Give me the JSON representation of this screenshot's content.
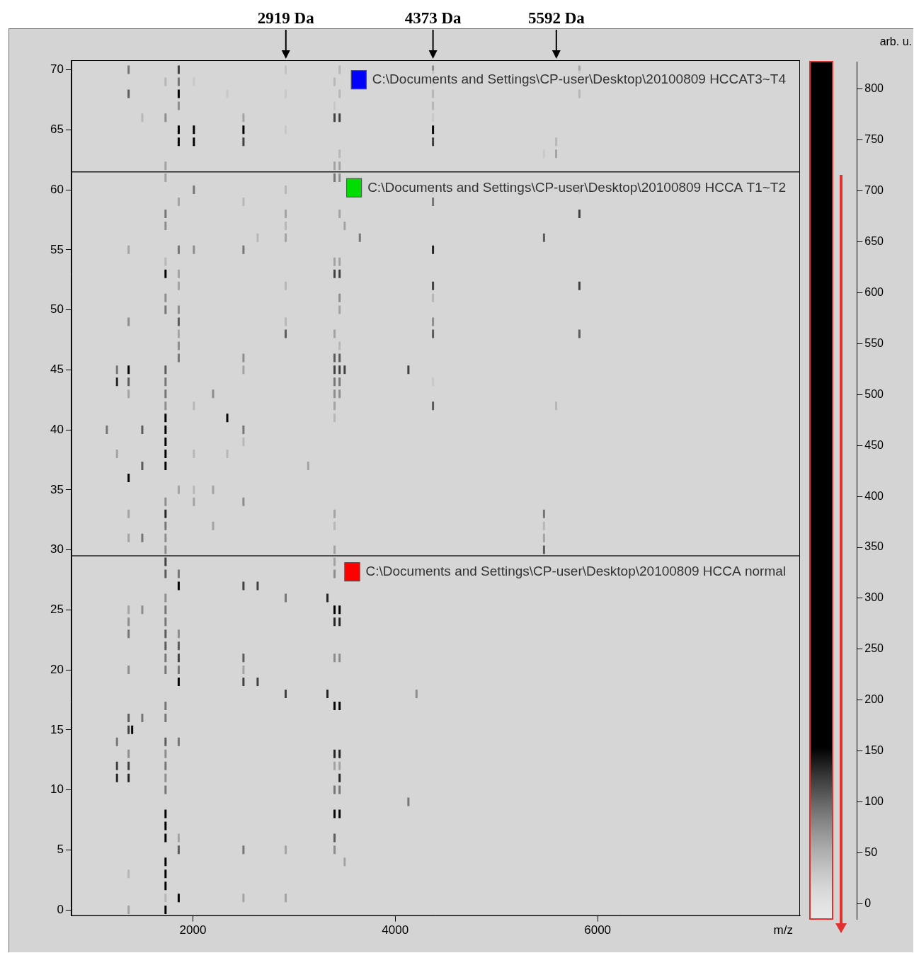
{
  "chart_data": {
    "type": "gel",
    "x_label": "m/z",
    "xlim": [
      800,
      8000
    ],
    "xticks": [
      2000,
      4000,
      6000
    ],
    "ylim": [
      -0.5,
      70.8
    ],
    "yticks": [
      0,
      5,
      10,
      15,
      20,
      25,
      30,
      35,
      40,
      45,
      50,
      55,
      60,
      65,
      70
    ],
    "grid": false,
    "annotations": [
      {
        "text": "2919 Da",
        "x": 2919
      },
      {
        "text": "4373 Da",
        "x": 4373
      },
      {
        "text": "5592 Da",
        "x": 5592
      }
    ],
    "groups": [
      {
        "label": "C:\\Documents and Settings\\CP-user\\Desktop\\20100809 HCCAT3~T4",
        "color": "#0000ff",
        "rows": [
          62,
          70
        ]
      },
      {
        "label": "C:\\Documents and Settings\\CP-user\\Desktop\\20100809 HCCA T1~T2",
        "color": "#00dd00",
        "rows": [
          30,
          61
        ]
      },
      {
        "label": "C:\\Documents and Settings\\CP-user\\Desktop\\20100809 HCCA normal",
        "color": "#ff0000",
        "rows": [
          0,
          29
        ]
      }
    ],
    "colorbar": {
      "label": "arb. u.",
      "range": [
        -15,
        827
      ],
      "ticks": [
        0,
        50,
        100,
        150,
        200,
        250,
        300,
        350,
        400,
        450,
        500,
        550,
        600,
        650,
        700,
        750,
        800
      ]
    },
    "bands": [
      [
        1365,
        70,
        90
      ],
      [
        1860,
        70,
        120
      ],
      [
        2917,
        70,
        35
      ],
      [
        3450,
        70,
        45
      ],
      [
        4373,
        70,
        75
      ],
      [
        5820,
        70,
        60
      ],
      [
        1730,
        69,
        45
      ],
      [
        1860,
        69,
        90
      ],
      [
        2010,
        69,
        30
      ],
      [
        3400,
        69,
        45
      ],
      [
        4373,
        69,
        60
      ],
      [
        1365,
        68,
        105
      ],
      [
        1860,
        68,
        150
      ],
      [
        2340,
        68,
        30
      ],
      [
        2917,
        68,
        30
      ],
      [
        3450,
        68,
        45
      ],
      [
        4373,
        68,
        45
      ],
      [
        5820,
        68,
        45
      ],
      [
        1860,
        67,
        75
      ],
      [
        3400,
        67,
        30
      ],
      [
        4373,
        67,
        45
      ],
      [
        1500,
        66,
        45
      ],
      [
        1730,
        66,
        75
      ],
      [
        2500,
        66,
        60
      ],
      [
        3400,
        66,
        120
      ],
      [
        3450,
        66,
        120
      ],
      [
        4373,
        66,
        30
      ],
      [
        1860,
        65,
        195
      ],
      [
        2010,
        65,
        210
      ],
      [
        2500,
        65,
        165
      ],
      [
        2917,
        65,
        30
      ],
      [
        4373,
        65,
        150
      ],
      [
        1860,
        64,
        150
      ],
      [
        2010,
        64,
        180
      ],
      [
        2500,
        64,
        120
      ],
      [
        4373,
        64,
        120
      ],
      [
        5590,
        64,
        45
      ],
      [
        3450,
        63,
        45
      ],
      [
        5470,
        63,
        30
      ],
      [
        5590,
        63,
        60
      ],
      [
        1730,
        62,
        60
      ],
      [
        3400,
        62,
        60
      ],
      [
        3450,
        62,
        60
      ],
      [
        1730,
        61,
        60
      ],
      [
        3400,
        61,
        90
      ],
      [
        3450,
        61,
        75
      ],
      [
        2010,
        60,
        90
      ],
      [
        2917,
        60,
        45
      ],
      [
        4373,
        60,
        60
      ],
      [
        5820,
        60,
        75
      ],
      [
        1860,
        59,
        60
      ],
      [
        2500,
        59,
        45
      ],
      [
        4373,
        59,
        90
      ],
      [
        1730,
        58,
        90
      ],
      [
        2917,
        58,
        60
      ],
      [
        3450,
        58,
        60
      ],
      [
        5820,
        58,
        120
      ],
      [
        1730,
        57,
        75
      ],
      [
        2917,
        57,
        45
      ],
      [
        3500,
        57,
        60
      ],
      [
        2640,
        56,
        45
      ],
      [
        2917,
        56,
        60
      ],
      [
        3650,
        56,
        90
      ],
      [
        5470,
        56,
        105
      ],
      [
        1365,
        55,
        60
      ],
      [
        1860,
        55,
        90
      ],
      [
        2010,
        55,
        75
      ],
      [
        2500,
        55,
        90
      ],
      [
        4373,
        55,
        135
      ],
      [
        1730,
        54,
        45
      ],
      [
        3400,
        54,
        60
      ],
      [
        3450,
        54,
        60
      ],
      [
        1730,
        53,
        180
      ],
      [
        1860,
        53,
        60
      ],
      [
        3400,
        53,
        120
      ],
      [
        3450,
        53,
        120
      ],
      [
        1860,
        52,
        60
      ],
      [
        2917,
        52,
        45
      ],
      [
        4373,
        52,
        120
      ],
      [
        5820,
        52,
        120
      ],
      [
        1730,
        51,
        75
      ],
      [
        3450,
        51,
        75
      ],
      [
        4373,
        51,
        45
      ],
      [
        1730,
        50,
        90
      ],
      [
        1860,
        50,
        75
      ],
      [
        3450,
        50,
        60
      ],
      [
        1365,
        49,
        75
      ],
      [
        1860,
        49,
        105
      ],
      [
        2917,
        49,
        45
      ],
      [
        4373,
        49,
        75
      ],
      [
        1860,
        48,
        60
      ],
      [
        2917,
        48,
        105
      ],
      [
        3400,
        48,
        60
      ],
      [
        4373,
        48,
        105
      ],
      [
        5820,
        48,
        105
      ],
      [
        1860,
        47,
        75
      ],
      [
        3450,
        47,
        45
      ],
      [
        1860,
        46,
        90
      ],
      [
        2500,
        46,
        75
      ],
      [
        3400,
        46,
        105
      ],
      [
        3450,
        46,
        105
      ],
      [
        1250,
        45,
        90
      ],
      [
        1365,
        45,
        150
      ],
      [
        1730,
        45,
        105
      ],
      [
        2500,
        45,
        60
      ],
      [
        3400,
        45,
        120
      ],
      [
        3450,
        45,
        120
      ],
      [
        3500,
        45,
        120
      ],
      [
        4130,
        45,
        120
      ],
      [
        1250,
        44,
        135
      ],
      [
        1365,
        44,
        105
      ],
      [
        1730,
        44,
        90
      ],
      [
        3400,
        44,
        90
      ],
      [
        3450,
        44,
        90
      ],
      [
        4373,
        44,
        30
      ],
      [
        1365,
        43,
        60
      ],
      [
        1730,
        43,
        90
      ],
      [
        2200,
        43,
        75
      ],
      [
        3400,
        43,
        75
      ],
      [
        3450,
        43,
        75
      ],
      [
        1730,
        42,
        75
      ],
      [
        2010,
        42,
        45
      ],
      [
        3400,
        42,
        60
      ],
      [
        4373,
        42,
        105
      ],
      [
        5590,
        42,
        45
      ],
      [
        1730,
        41,
        180
      ],
      [
        2340,
        41,
        150
      ],
      [
        3400,
        41,
        45
      ],
      [
        1150,
        40,
        90
      ],
      [
        1500,
        40,
        105
      ],
      [
        1730,
        40,
        195
      ],
      [
        2500,
        40,
        90
      ],
      [
        1730,
        39,
        195
      ],
      [
        2500,
        39,
        45
      ],
      [
        1250,
        38,
        60
      ],
      [
        1730,
        38,
        210
      ],
      [
        2010,
        38,
        45
      ],
      [
        2340,
        38,
        45
      ],
      [
        1500,
        37,
        105
      ],
      [
        1730,
        37,
        195
      ],
      [
        3140,
        37,
        60
      ],
      [
        1365,
        36,
        150
      ],
      [
        1860,
        35,
        60
      ],
      [
        2010,
        35,
        45
      ],
      [
        2200,
        35,
        60
      ],
      [
        1730,
        34,
        75
      ],
      [
        2010,
        34,
        60
      ],
      [
        2500,
        34,
        75
      ],
      [
        1365,
        33,
        60
      ],
      [
        1730,
        33,
        135
      ],
      [
        3400,
        33,
        60
      ],
      [
        5470,
        33,
        90
      ],
      [
        1730,
        32,
        90
      ],
      [
        2200,
        32,
        60
      ],
      [
        3400,
        32,
        45
      ],
      [
        5470,
        32,
        45
      ],
      [
        1365,
        31,
        60
      ],
      [
        1500,
        31,
        90
      ],
      [
        1730,
        31,
        75
      ],
      [
        5470,
        31,
        60
      ],
      [
        1730,
        30,
        75
      ],
      [
        3400,
        30,
        60
      ],
      [
        5470,
        30,
        105
      ],
      [
        1730,
        29,
        120
      ],
      [
        3400,
        29,
        60
      ],
      [
        1730,
        28,
        105
      ],
      [
        1860,
        28,
        90
      ],
      [
        3400,
        28,
        75
      ],
      [
        1860,
        27,
        150
      ],
      [
        2500,
        27,
        120
      ],
      [
        2640,
        27,
        120
      ],
      [
        1730,
        26,
        75
      ],
      [
        2917,
        26,
        90
      ],
      [
        3330,
        26,
        135
      ],
      [
        1365,
        25,
        60
      ],
      [
        1500,
        25,
        75
      ],
      [
        1730,
        25,
        90
      ],
      [
        3400,
        25,
        165
      ],
      [
        3450,
        25,
        180
      ],
      [
        1365,
        24,
        75
      ],
      [
        1730,
        24,
        90
      ],
      [
        3400,
        24,
        135
      ],
      [
        3450,
        24,
        135
      ],
      [
        1365,
        23,
        90
      ],
      [
        1730,
        23,
        105
      ],
      [
        1860,
        23,
        75
      ],
      [
        1730,
        22,
        105
      ],
      [
        1860,
        22,
        105
      ],
      [
        1730,
        21,
        90
      ],
      [
        1860,
        21,
        120
      ],
      [
        2500,
        21,
        105
      ],
      [
        3400,
        21,
        75
      ],
      [
        3450,
        21,
        75
      ],
      [
        1365,
        20,
        75
      ],
      [
        1730,
        20,
        90
      ],
      [
        1860,
        20,
        90
      ],
      [
        2500,
        20,
        60
      ],
      [
        1860,
        19,
        150
      ],
      [
        2500,
        19,
        120
      ],
      [
        2640,
        19,
        120
      ],
      [
        2917,
        18,
        120
      ],
      [
        3330,
        18,
        135
      ],
      [
        4210,
        18,
        75
      ],
      [
        1730,
        17,
        90
      ],
      [
        3400,
        17,
        150
      ],
      [
        3450,
        17,
        150
      ],
      [
        1365,
        16,
        105
      ],
      [
        1500,
        16,
        90
      ],
      [
        1730,
        16,
        90
      ],
      [
        1400,
        15,
        150
      ],
      [
        1365,
        15,
        120
      ],
      [
        1250,
        14,
        90
      ],
      [
        1730,
        14,
        105
      ],
      [
        1860,
        14,
        90
      ],
      [
        1365,
        13,
        75
      ],
      [
        1730,
        13,
        75
      ],
      [
        3400,
        13,
        135
      ],
      [
        3450,
        13,
        135
      ],
      [
        1250,
        12,
        120
      ],
      [
        1365,
        12,
        120
      ],
      [
        1730,
        12,
        90
      ],
      [
        3400,
        12,
        60
      ],
      [
        3450,
        12,
        60
      ],
      [
        1250,
        11,
        135
      ],
      [
        1365,
        11,
        135
      ],
      [
        1730,
        11,
        75
      ],
      [
        3450,
        11,
        135
      ],
      [
        1730,
        10,
        90
      ],
      [
        3400,
        10,
        90
      ],
      [
        3450,
        10,
        90
      ],
      [
        4130,
        9,
        90
      ],
      [
        1730,
        8,
        180
      ],
      [
        3400,
        8,
        150
      ],
      [
        3450,
        8,
        150
      ],
      [
        1730,
        7,
        165
      ],
      [
        1730,
        6,
        180
      ],
      [
        1860,
        6,
        60
      ],
      [
        3400,
        6,
        105
      ],
      [
        1860,
        5,
        105
      ],
      [
        2500,
        5,
        90
      ],
      [
        2917,
        5,
        60
      ],
      [
        3400,
        5,
        75
      ],
      [
        1730,
        4,
        180
      ],
      [
        3500,
        4,
        60
      ],
      [
        1730,
        3,
        180
      ],
      [
        1365,
        3,
        45
      ],
      [
        1730,
        2,
        180
      ],
      [
        1730,
        1,
        45
      ],
      [
        1860,
        1,
        150
      ],
      [
        2500,
        1,
        60
      ],
      [
        2917,
        1,
        60
      ],
      [
        1730,
        0,
        165
      ],
      [
        1365,
        0,
        60
      ]
    ]
  }
}
